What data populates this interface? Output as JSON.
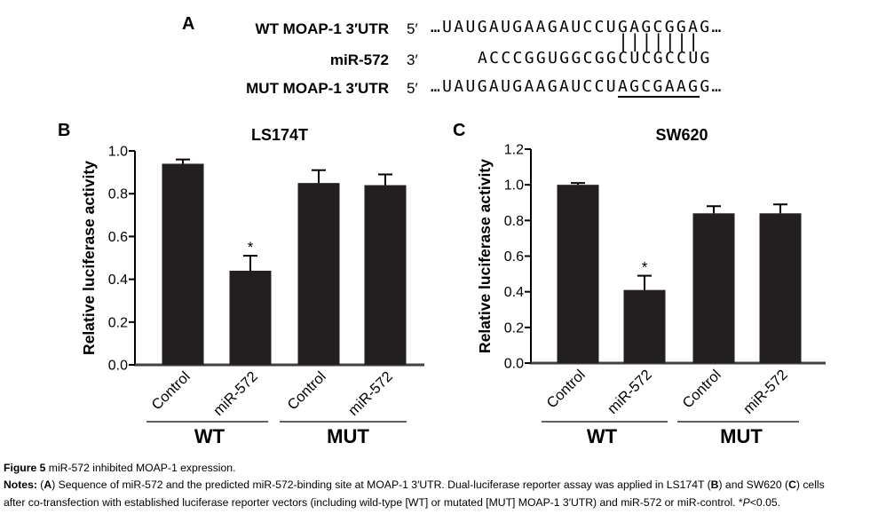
{
  "panelA": {
    "label": "A",
    "rows": [
      {
        "name": "WT MOAP-1 3′UTR",
        "prime": "5′",
        "seq": "…UAUGAUGAAGAUCCUGAGCGGAG…"
      },
      {
        "name": "miR-572",
        "prime": "3′",
        "seq": "ACCCGGUGGCGGCUCGCCUG"
      },
      {
        "name": "MUT MOAP-1 3′UTR",
        "prime": "5′",
        "seq_prefix": "…UAUGAUGAAGAUCCU",
        "seq_underlined": "AGCGAAG",
        "seq_suffix": "G…"
      }
    ],
    "pairing_bars": "|||||||"
  },
  "chart_data": [
    {
      "type": "bar",
      "panel_label": "B",
      "title": "LS174T",
      "ylabel": "Relative luciferase activity",
      "ylim": [
        0,
        1.0
      ],
      "ytick_step": 0.2,
      "categories": [
        "Control",
        "miR-572",
        "Control",
        "miR-572"
      ],
      "values": [
        0.94,
        0.44,
        0.85,
        0.84
      ],
      "errors": [
        0.02,
        0.07,
        0.06,
        0.05
      ],
      "sig": [
        "",
        "*",
        "",
        ""
      ],
      "groups": [
        "WT",
        "MUT"
      ],
      "bar_color": "#231f20"
    },
    {
      "type": "bar",
      "panel_label": "C",
      "title": "SW620",
      "ylabel": "Relative luciferase activity",
      "ylim": [
        0,
        1.2
      ],
      "ytick_step": 0.2,
      "categories": [
        "Control",
        "miR-572",
        "Control",
        "miR-572"
      ],
      "values": [
        1.0,
        0.41,
        0.84,
        0.84
      ],
      "errors": [
        0.01,
        0.08,
        0.04,
        0.05
      ],
      "sig": [
        "",
        "*",
        "",
        ""
      ],
      "groups": [
        "WT",
        "MUT"
      ],
      "bar_color": "#231f20"
    }
  ],
  "caption": {
    "fig_label": "Figure 5",
    "fig_text": " miR-572 inhibited MOAP-1 expression.",
    "notes_label": "Notes:",
    "notes_1": " (",
    "bold_a": "A",
    "notes_2": ") Sequence of miR-572 and the predicted miR-572-binding site at MOAP-1 3′UTR. Dual-luciferase reporter assay was applied in LS174T (",
    "bold_b": "B",
    "notes_3": ") and SW620 (",
    "bold_c": "C",
    "notes_4": ") cells",
    "notes_5": "after co-transfection with established luciferase reporter vectors (including wild-type [WT] or mutated [MUT] MOAP-1 3′UTR) and miR-572 or miR-control. *",
    "italic_p": "P",
    "notes_6": "<0.05."
  }
}
